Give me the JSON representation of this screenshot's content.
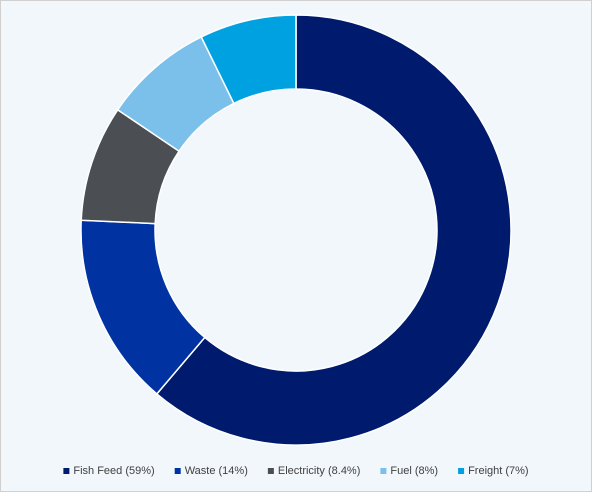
{
  "chart_data": {
    "type": "donut",
    "categories": [
      "Fish Feed (59%)",
      "Waste (14%)",
      "Electricity (8.4%)",
      "Fuel (8%)",
      "Freight (7%)"
    ],
    "values": [
      59,
      14,
      8.4,
      8,
      7
    ],
    "colors": [
      "#001b6e",
      "#0033a1",
      "#4b4f54",
      "#7bc0ea",
      "#00a1e0"
    ],
    "legend": "bottom"
  }
}
